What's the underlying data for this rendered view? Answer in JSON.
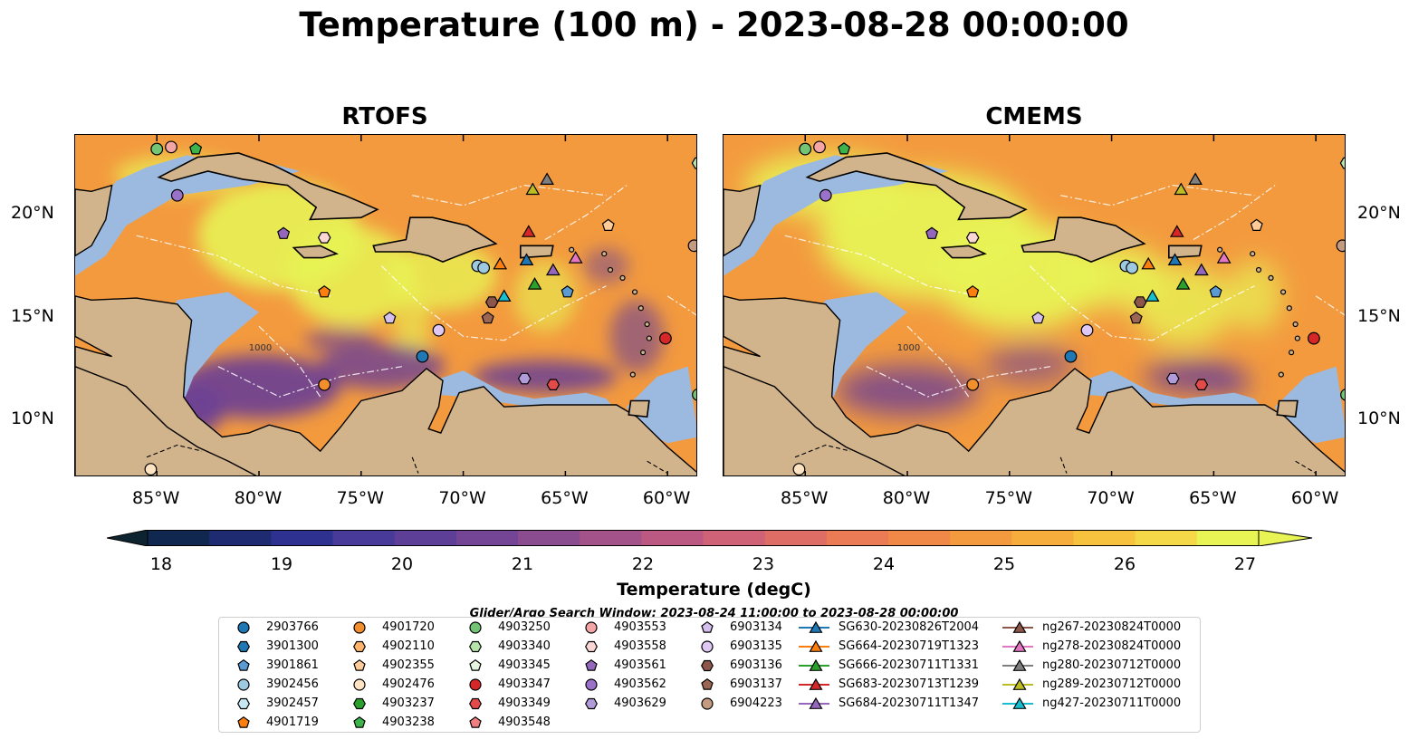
{
  "title": "Temperature (100 m) - 2023-08-28 00:00:00",
  "panels": [
    {
      "title": "RTOFS"
    },
    {
      "title": "CMEMS"
    }
  ],
  "axes": {
    "lat_labels": [
      "20°N",
      "15°N",
      "10°N"
    ],
    "lon_labels": [
      "85°W",
      "80°W",
      "75°W",
      "70°W",
      "65°W",
      "60°W"
    ],
    "lon_range": [
      -89,
      -58.5
    ],
    "lat_range": [
      7,
      24
    ],
    "contour_label": "1000"
  },
  "colorbar": {
    "label": "Temperature (degC)",
    "ticks": [
      "18",
      "19",
      "20",
      "21",
      "22",
      "23",
      "24",
      "25",
      "26",
      "27"
    ],
    "min": 18,
    "max": 27,
    "step": 0.5,
    "colors": [
      "#0d2330",
      "#10274f",
      "#1f2b70",
      "#2e3190",
      "#473a98",
      "#5d3f97",
      "#744594",
      "#8b4b8f",
      "#a3528a",
      "#bb5982",
      "#cf6277",
      "#de6d66",
      "#ea7b55",
      "#f08947",
      "#f39a3e",
      "#f6ad3b",
      "#f7c23e",
      "#f4d847",
      "#e8f354"
    ]
  },
  "search_window": "Glider/Argo Search Window: 2023-08-24 11:00:00 to 2023-08-28 00:00:00",
  "colors": {
    "land": "#d2b48c",
    "shelf": "#9cb9e0",
    "deep": "#0f2a45",
    "warm": "#f39a3e",
    "hot": "#e8f354"
  },
  "legend": [
    {
      "label": "2903766",
      "marker": "circle",
      "color": "#1f77b4"
    },
    {
      "label": "3901300",
      "marker": "hexagon",
      "color": "#1f77b4"
    },
    {
      "label": "3901861",
      "marker": "pentagon",
      "color": "#5a9bd4"
    },
    {
      "label": "3902456",
      "marker": "circle",
      "color": "#9ecae1"
    },
    {
      "label": "3902457",
      "marker": "hexagon",
      "color": "#c6e8f5"
    },
    {
      "label": "4901719",
      "marker": "pentagon",
      "color": "#ff7f0e"
    },
    {
      "label": "4901720",
      "marker": "circle",
      "color": "#f28e2b"
    },
    {
      "label": "4902110",
      "marker": "hexagon",
      "color": "#ffb36b"
    },
    {
      "label": "4902355",
      "marker": "pentagon",
      "color": "#ffcc99"
    },
    {
      "label": "4902476",
      "marker": "circle",
      "color": "#ffe4c4"
    },
    {
      "label": "4903237",
      "marker": "hexagon",
      "color": "#2ca02c"
    },
    {
      "label": "4903238",
      "marker": "pentagon",
      "color": "#3cb44b"
    },
    {
      "label": "4903250",
      "marker": "circle",
      "color": "#74c476"
    },
    {
      "label": "4903340",
      "marker": "hexagon",
      "color": "#b6e3a8"
    },
    {
      "label": "4903345",
      "marker": "pentagon",
      "color": "#e5f5e0"
    },
    {
      "label": "4903347",
      "marker": "circle",
      "color": "#d62728"
    },
    {
      "label": "4903349",
      "marker": "hexagon",
      "color": "#e34a4a"
    },
    {
      "label": "4903548",
      "marker": "pentagon",
      "color": "#f08080"
    },
    {
      "label": "4903553",
      "marker": "circle",
      "color": "#f4a6a6"
    },
    {
      "label": "4903558",
      "marker": "hexagon",
      "color": "#fcd5d5"
    },
    {
      "label": "4903561",
      "marker": "pentagon",
      "color": "#9467bd"
    },
    {
      "label": "4903562",
      "marker": "circle",
      "color": "#9b72c9"
    },
    {
      "label": "4903629",
      "marker": "hexagon",
      "color": "#b19cd9"
    },
    {
      "label": "6903134",
      "marker": "pentagon",
      "color": "#d4bfef"
    },
    {
      "label": "6903135",
      "marker": "circle",
      "color": "#e0c8f5"
    },
    {
      "label": "6903136",
      "marker": "hexagon",
      "color": "#8c564b"
    },
    {
      "label": "6903137",
      "marker": "pentagon",
      "color": "#9c6654"
    },
    {
      "label": "6904223",
      "marker": "circle",
      "color": "#c49a80"
    },
    {
      "label": "SG630-20230826T2004",
      "marker": "triangle",
      "color": "#1f77b4"
    },
    {
      "label": "SG664-20230719T1323",
      "marker": "triangle",
      "color": "#ff7f0e"
    },
    {
      "label": "SG666-20230711T1331",
      "marker": "triangle",
      "color": "#2ca02c"
    },
    {
      "label": "SG683-20230713T1239",
      "marker": "triangle",
      "color": "#d62728"
    },
    {
      "label": "SG684-20230711T1347",
      "marker": "triangle",
      "color": "#9467bd"
    },
    {
      "label": "ng267-20230824T0000",
      "marker": "triangle",
      "color": "#8c564b"
    },
    {
      "label": "ng278-20230824T0000",
      "marker": "triangle",
      "color": "#e377c2"
    },
    {
      "label": "ng280-20230712T0000",
      "marker": "triangle",
      "color": "#7f7f7f"
    },
    {
      "label": "ng289-20230712T0000",
      "marker": "triangle",
      "color": "#bcbd22"
    },
    {
      "label": "ng427-20230711T0000",
      "marker": "triangle",
      "color": "#17becf"
    }
  ],
  "markers": [
    {
      "id": "4903250",
      "lon": -85.0,
      "lat": 23.3
    },
    {
      "id": "4903553",
      "lon": -84.3,
      "lat": 23.4
    },
    {
      "id": "4903238",
      "lon": -83.1,
      "lat": 23.3
    },
    {
      "id": "4903562",
      "lon": -84.0,
      "lat": 21.0
    },
    {
      "id": "4903561",
      "lon": -78.8,
      "lat": 19.1
    },
    {
      "id": "4903558",
      "lon": -76.8,
      "lat": 18.9
    },
    {
      "id": "4901719",
      "lon": -76.8,
      "lat": 16.2
    },
    {
      "id": "6903134",
      "lon": -73.6,
      "lat": 14.9
    },
    {
      "id": "6903135",
      "lon": -71.2,
      "lat": 14.3
    },
    {
      "id": "2903766",
      "lon": -72.0,
      "lat": 13.0
    },
    {
      "id": "4901720",
      "lon": -76.8,
      "lat": 11.6
    },
    {
      "id": "4902476",
      "lon": -85.3,
      "lat": 7.4
    },
    {
      "id": "3902456",
      "lon": -69.3,
      "lat": 17.5
    },
    {
      "id": "3902456",
      "lon": -69.0,
      "lat": 17.4
    },
    {
      "id": "6903136",
      "lon": -68.6,
      "lat": 15.7
    },
    {
      "id": "6903137",
      "lon": -68.8,
      "lat": 14.9
    },
    {
      "id": "4902355",
      "lon": -62.9,
      "lat": 19.5
    },
    {
      "id": "3901861",
      "lon": -64.9,
      "lat": 16.2
    },
    {
      "id": "4903629",
      "lon": -67.0,
      "lat": 11.9
    },
    {
      "id": "4903349",
      "lon": -65.6,
      "lat": 11.6
    },
    {
      "id": "4903347",
      "lon": -60.1,
      "lat": 13.9
    },
    {
      "id": "6904223",
      "lon": -58.7,
      "lat": 18.5
    },
    {
      "id": "4903340",
      "lon": -58.5,
      "lat": 22.6
    },
    {
      "id": "4903250",
      "lon": -58.5,
      "lat": 11.1
    },
    {
      "id": "ng289-20230712T0000",
      "lon": -66.6,
      "lat": 21.3
    },
    {
      "id": "ng280-20230712T0000",
      "lon": -65.9,
      "lat": 21.8
    },
    {
      "id": "SG683-20230713T1239",
      "lon": -66.8,
      "lat": 19.2
    },
    {
      "id": "SG664-20230719T1323",
      "lon": -68.2,
      "lat": 17.6
    },
    {
      "id": "SG630-20230826T2004",
      "lon": -66.9,
      "lat": 17.8
    },
    {
      "id": "SG684-20230711T1347",
      "lon": -65.6,
      "lat": 17.3
    },
    {
      "id": "ng278-20230824T0000",
      "lon": -64.5,
      "lat": 17.9
    },
    {
      "id": "SG666-20230711T1331",
      "lon": -66.5,
      "lat": 16.6
    },
    {
      "id": "ng427-20230711T0000",
      "lon": -68.0,
      "lat": 16.0
    }
  ]
}
